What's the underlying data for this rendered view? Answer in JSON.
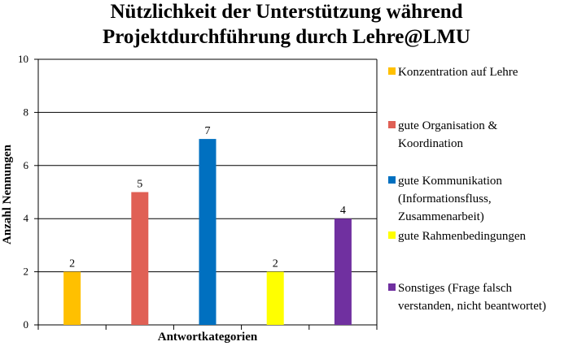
{
  "chart_data": {
    "type": "bar",
    "title_lines": [
      "Nützlichkeit der Unterstützung während",
      "Projektdurchführung durch Lehre@LMU"
    ],
    "xlabel": "Antwortkategorien",
    "ylabel": "Anzahl Nennungen",
    "ylim": [
      0,
      10
    ],
    "yticks": [
      0,
      2,
      4,
      6,
      8,
      10
    ],
    "grid": true,
    "legend_position": "right",
    "categories": [
      "Konzentration auf Lehre",
      "gute Organisation & Koordination",
      "gute Kommunikation (Informationsfluss, Zusammenarbeit)",
      "gute Rahmenbedingungen",
      "Sonstiges (Frage falsch verstanden, nicht beantwortet)"
    ],
    "values": [
      2,
      5,
      7,
      2,
      4
    ],
    "colors": [
      "#FFC000",
      "#E06055",
      "#0070C0",
      "#FFFF00",
      "#7030A0"
    ],
    "legend_lines": [
      [
        "Konzentration auf Lehre"
      ],
      [
        "gute Organisation &",
        "Koordination"
      ],
      [
        "gute Kommunikation",
        "(Informationsfluss,",
        "Zusammenarbeit)"
      ],
      [
        "gute Rahmenbedingungen"
      ],
      [
        "Sonstiges (Frage falsch",
        "verstanden, nicht beantwortet)"
      ]
    ]
  }
}
